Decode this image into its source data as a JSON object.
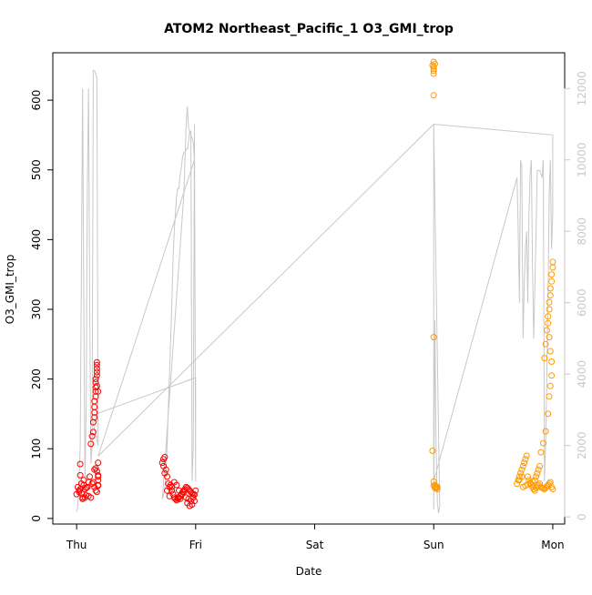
{
  "chart_data": {
    "type": "scatter",
    "title": "ATOM2 Northeast_Pacific_1 O3_GMI_trop",
    "xlabel": "Date",
    "ylabel": "O3_GMI_trop",
    "x_tick_labels": [
      "Thu",
      "Fri",
      "Sat",
      "Sun",
      "Mon"
    ],
    "x_tick_values": [
      0,
      1,
      2,
      3,
      4
    ],
    "xlim": [
      -0.2,
      4.1
    ],
    "ylim": [
      -8,
      668
    ],
    "y_ticks": [
      0,
      100,
      200,
      300,
      400,
      500,
      600
    ],
    "right_axis": {
      "ticks": [
        0,
        2000,
        4000,
        6000,
        8000,
        10000,
        12000
      ],
      "ylim": [
        -200,
        13000
      ],
      "color": "#c8c8c8"
    },
    "colors": {
      "red": "#ff0000",
      "orange": "#ff9900",
      "line": "#c8c8c8"
    },
    "series": [
      {
        "color": "#ff0000",
        "x": [
          0.0,
          0.01,
          0.02,
          0.03,
          0.03,
          0.04,
          0.05,
          0.06,
          0.06,
          0.07,
          0.08,
          0.09,
          0.1,
          0.11,
          0.12,
          0.13,
          0.14,
          0.14,
          0.15,
          0.15,
          0.15,
          0.15,
          0.16,
          0.16,
          0.16,
          0.16,
          0.16,
          0.17,
          0.17,
          0.17,
          0.17,
          0.17,
          0.17,
          0.18,
          0.18,
          0.18,
          0.18,
          0.18,
          0.18,
          0.18,
          0.15,
          0.16,
          0.17,
          0.13,
          0.14,
          0.15,
          0.16,
          0.17,
          0.05,
          0.07,
          0.02,
          0.03,
          0.04,
          0.08,
          0.1,
          0.12,
          0.72,
          0.73,
          0.74,
          0.75,
          0.76,
          0.77,
          0.78,
          0.79,
          0.8,
          0.81,
          0.82,
          0.83,
          0.84,
          0.85,
          0.86,
          0.87,
          0.88,
          0.89,
          0.9,
          0.91,
          0.92,
          0.93,
          0.94,
          0.95,
          0.96,
          0.97,
          0.98,
          0.99,
          1.0,
          0.73,
          0.74,
          0.76,
          0.78,
          0.8,
          0.82,
          0.84,
          0.86,
          0.88,
          0.9,
          0.92,
          0.94,
          0.96,
          0.98,
          0.93,
          0.95,
          0.97,
          0.99,
          0.85,
          0.87
        ],
        "y": [
          35,
          45,
          40,
          78,
          62,
          50,
          30,
          48,
          55,
          42,
          33,
          45,
          52,
          60,
          107,
          118,
          124,
          138,
          145,
          152,
          160,
          168,
          175,
          182,
          188,
          195,
          200,
          205,
          210,
          215,
          220,
          224,
          190,
          182,
          55,
          48,
          60,
          62,
          80,
          47,
          70,
          72,
          68,
          50,
          52,
          45,
          40,
          38,
          28,
          30,
          38,
          42,
          36,
          44,
          32,
          30,
          80,
          85,
          88,
          70,
          60,
          50,
          45,
          48,
          40,
          35,
          30,
          28,
          26,
          28,
          30,
          32,
          35,
          38,
          40,
          42,
          45,
          44,
          42,
          40,
          38,
          36,
          35,
          34,
          40,
          75,
          65,
          40,
          32,
          45,
          52,
          48,
          40,
          35,
          38,
          30,
          28,
          25,
          30,
          22,
          18,
          20,
          25,
          30,
          28
        ]
      },
      {
        "color": "#ff9900",
        "x": [
          2.99,
          3.0,
          3.0,
          3.0,
          3.0,
          3.01,
          3.0,
          3.0,
          3.0,
          2.99,
          3.0,
          3.01,
          3.02,
          3.03,
          3.02,
          3.01,
          3.0,
          3.02,
          3.03,
          3.7,
          3.71,
          3.72,
          3.73,
          3.74,
          3.75,
          3.76,
          3.77,
          3.78,
          3.79,
          3.8,
          3.81,
          3.82,
          3.83,
          3.84,
          3.85,
          3.86,
          3.87,
          3.88,
          3.89,
          3.9,
          3.91,
          3.92,
          3.93,
          3.94,
          3.95,
          3.96,
          3.97,
          3.98,
          3.99,
          4.0,
          3.75,
          3.77,
          3.79,
          3.81,
          3.83,
          3.85,
          3.86,
          3.87,
          3.88,
          3.89,
          3.9,
          3.92,
          3.94,
          3.96,
          3.97,
          3.98,
          3.99,
          3.99,
          3.98,
          3.97,
          3.96,
          3.97,
          3.98,
          3.99,
          4.0,
          4.0,
          3.99,
          3.98,
          3.97,
          3.96,
          3.95,
          3.94,
          3.93,
          3.72,
          3.74
        ],
        "y": [
          650,
          655,
          648,
          642,
          638,
          652,
          645,
          607,
          260,
          97,
          53,
          48,
          45,
          42,
          46,
          44,
          47,
          43,
          45,
          50,
          55,
          60,
          65,
          70,
          75,
          80,
          85,
          90,
          60,
          55,
          50,
          48,
          45,
          42,
          40,
          44,
          46,
          48,
          50,
          45,
          44,
          43,
          42,
          44,
          46,
          48,
          50,
          52,
          45,
          42,
          45,
          47,
          49,
          51,
          53,
          55,
          60,
          65,
          70,
          75,
          95,
          108,
          125,
          150,
          175,
          190,
          205,
          225,
          240,
          260,
          280,
          300,
          320,
          340,
          360,
          368,
          350,
          330,
          310,
          290,
          270,
          250,
          230,
          55,
          60
        ]
      }
    ],
    "line_series": {
      "color": "#c8c8c8",
      "x": [
        0.0,
        0.01,
        0.02,
        0.03,
        0.04,
        0.05,
        0.06,
        0.07,
        0.08,
        0.09,
        0.1,
        0.11,
        0.12,
        0.13,
        0.14,
        0.15,
        0.16,
        0.17,
        0.18,
        0.14,
        0.18,
        1.0,
        1.0,
        0.99,
        0.98,
        0.97,
        0.96,
        0.95,
        0.94,
        0.93,
        0.92,
        0.91,
        0.9,
        0.89,
        0.88,
        0.87,
        0.86,
        0.85,
        0.84,
        0.83,
        0.82,
        0.81,
        0.8,
        0.79,
        0.78,
        0.77,
        0.76,
        0.75,
        0.74,
        0.73,
        0.72,
        0.9,
        0.92,
        0.93,
        0.94,
        0.95,
        0.96,
        0.97,
        0.98,
        0.99,
        0.18,
        3.0,
        3.0,
        3.01,
        3.02,
        3.03,
        3.04,
        3.05,
        3.0,
        4.0,
        4.0,
        3.99,
        3.98,
        3.97,
        3.96,
        3.95,
        3.94,
        3.93,
        3.92,
        3.91,
        3.9,
        3.89,
        3.88,
        3.87,
        3.86,
        3.85,
        3.84,
        3.83,
        3.82,
        3.81,
        3.8,
        3.79,
        3.78,
        3.77,
        3.76,
        3.75,
        3.74,
        3.73,
        3.72,
        3.71,
        3.7,
        3.0
      ],
      "y": [
        140,
        300,
        1000,
        2000,
        7000,
        12000,
        6000,
        1000,
        3000,
        9200,
        12000,
        6000,
        1500,
        2000,
        12500,
        12500,
        12400,
        12300,
        2000,
        2600,
        2900,
        3900,
        1000,
        11000,
        2000,
        1000,
        10800,
        10800,
        10500,
        10300,
        10300,
        10200,
        10200,
        10100,
        9800,
        9600,
        9200,
        9200,
        9000,
        8500,
        8000,
        7200,
        6000,
        5000,
        4000,
        3000,
        2000,
        1200,
        800,
        600,
        500,
        9000,
        11000,
        11500,
        10900,
        10800,
        10700,
        10600,
        10500,
        10000,
        1700,
        11000,
        200,
        5500,
        2000,
        400,
        100,
        300,
        11000,
        10700,
        8500,
        7500,
        10000,
        9000,
        6000,
        4000,
        2000,
        1000,
        10000,
        9500,
        9600,
        9700,
        9700,
        9700,
        8000,
        6500,
        5000,
        7000,
        10000,
        9600,
        8500,
        6000,
        8000,
        7500,
        6500,
        5000,
        9800,
        10000,
        6000,
        8000,
        9500,
        1000
      ]
    }
  }
}
